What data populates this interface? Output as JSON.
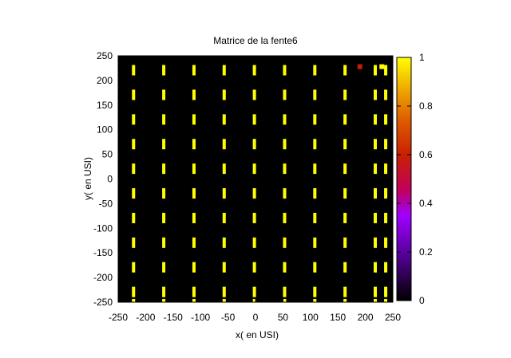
{
  "chart_data": {
    "type": "heatmap",
    "title": "Matrice de la fente6",
    "xlabel": "x( en USI)",
    "ylabel": "y( en USI)",
    "xlim": [
      -250,
      250
    ],
    "ylim": [
      -250,
      250
    ],
    "x_ticks": [
      "-250",
      "-200",
      "-150",
      "-100",
      "-50",
      "0",
      "50",
      "100",
      "150",
      "200",
      "250"
    ],
    "y_ticks": [
      "250",
      "200",
      "150",
      "100",
      "50",
      "0",
      "-50",
      "-100",
      "-150",
      "-200",
      "-250"
    ],
    "colorbar": {
      "range": [
        0,
        1
      ],
      "ticks": [
        "1",
        "0.8",
        "0.6",
        "0.4",
        "0.2",
        "0"
      ],
      "palette": [
        "#000000",
        "#7a00c8",
        "#c8003c",
        "#e06000",
        "#f0c000",
        "#ffff00"
      ]
    },
    "background_color": "#000000",
    "cell_color": "#ffff00",
    "grid_columns_x": [
      -222,
      -167,
      -112,
      -57,
      -2,
      53,
      108,
      163,
      218,
      237
    ],
    "grid_rows_y": [
      220,
      170,
      120,
      70,
      20,
      -30,
      -80,
      -130,
      -180,
      -230
    ],
    "cell_value": 1,
    "extra_cells": [
      {
        "x": 190,
        "y": 228,
        "value": 0.6
      },
      {
        "x": 230,
        "y": 228,
        "value": 1
      }
    ]
  }
}
